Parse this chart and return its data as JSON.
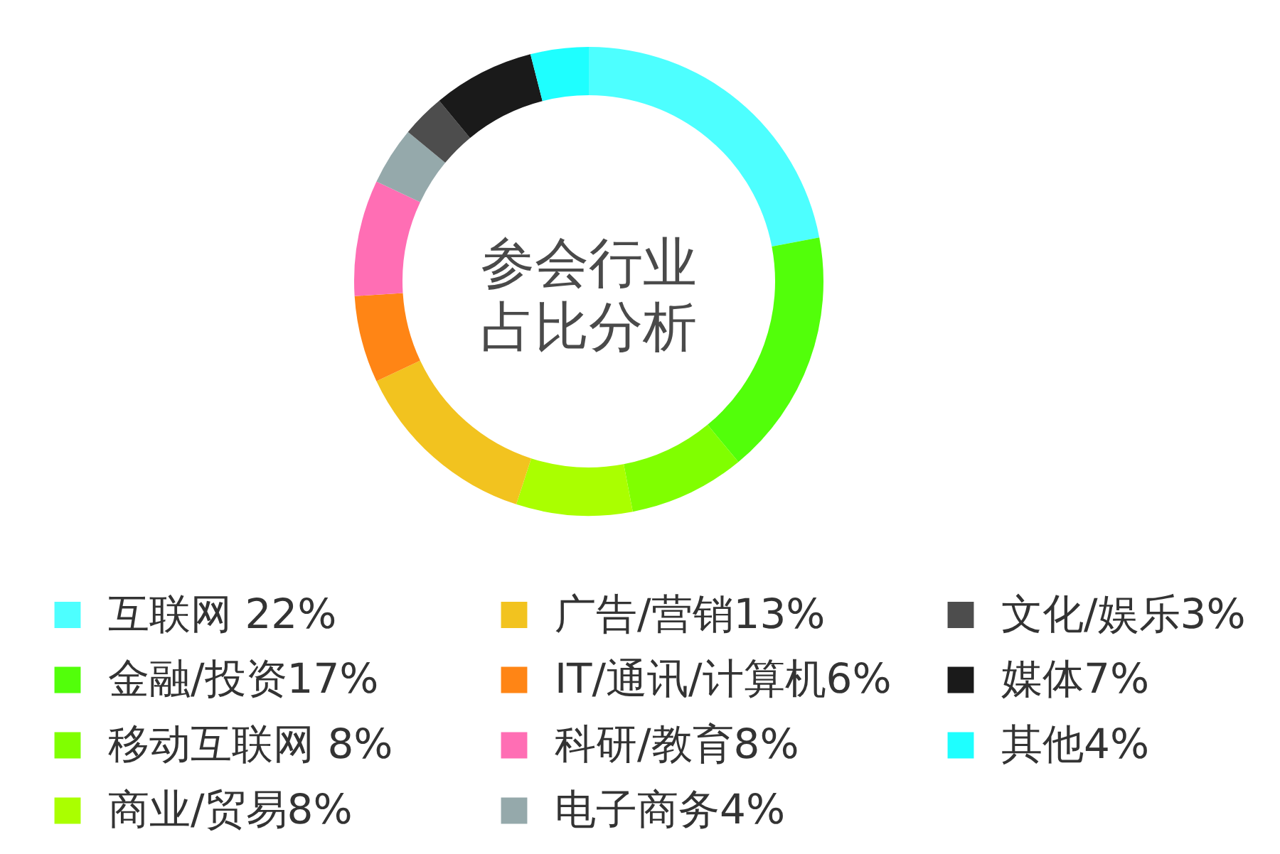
{
  "chart_data": {
    "type": "donut",
    "title": "参会行业占比分析",
    "categories": [
      "互联网 22%",
      "金融/投资17%",
      "移动互联网 8%",
      "商业/贸易8%",
      "广告/营销13%",
      "IT/通讯/计算机6%",
      "科研/教育8%",
      "电子商务4%",
      "文化/娱乐3%",
      "媒体7%",
      "其他4%"
    ],
    "values": [
      22,
      17,
      8,
      8,
      13,
      6,
      8,
      4,
      3,
      7,
      4
    ],
    "colors": [
      "#4dffff",
      "#52ff0a",
      "#80ff00",
      "#aaff00",
      "#f2c31f",
      "#ff8515",
      "#ff6eb4",
      "#95a9ab",
      "#4d4d4d",
      "#1a1a1a",
      "#1effff"
    ],
    "legend": "bottom"
  }
}
